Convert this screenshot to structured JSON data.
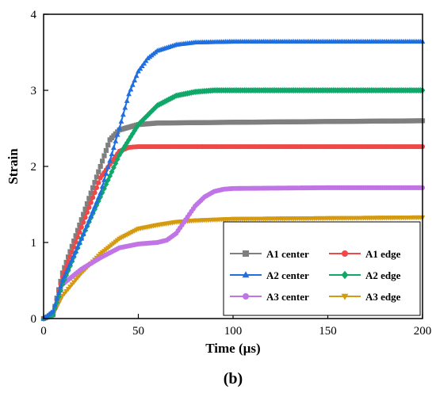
{
  "caption": "(b)",
  "chart_data": {
    "type": "line",
    "xlabel": "Time (µs)",
    "ylabel": "Strain",
    "xlim": [
      0,
      200
    ],
    "ylim": [
      0,
      4
    ],
    "xticks": [
      0,
      50,
      100,
      150,
      200
    ],
    "xtick_labels": [
      "0",
      "50",
      "100",
      "150",
      "200"
    ],
    "yticks": [
      0,
      1,
      2,
      3,
      4
    ],
    "ytick_labels": [
      "0",
      "1",
      "2",
      "3",
      "4"
    ],
    "grid": false,
    "legend_position": "bottom-right",
    "series": [
      {
        "name": "A1 center",
        "color": "#7f7f7f",
        "marker": "square",
        "x": [
          0,
          5,
          10,
          20,
          30,
          35,
          40,
          50,
          60,
          100,
          150,
          200
        ],
        "y": [
          0,
          0.05,
          0.6,
          1.3,
          2.0,
          2.35,
          2.48,
          2.55,
          2.57,
          2.58,
          2.59,
          2.6
        ]
      },
      {
        "name": "A1 edge",
        "color": "#f04848",
        "marker": "circle",
        "x": [
          0,
          5,
          10,
          20,
          30,
          40,
          45,
          50,
          100,
          150,
          200
        ],
        "y": [
          0,
          0.05,
          0.55,
          1.2,
          1.85,
          2.2,
          2.25,
          2.26,
          2.26,
          2.26,
          2.26
        ]
      },
      {
        "name": "A2 center",
        "color": "#1f6fe0",
        "marker": "triangle-up",
        "x": [
          0,
          5,
          10,
          20,
          30,
          40,
          45,
          50,
          55,
          60,
          70,
          80,
          100,
          150,
          200
        ],
        "y": [
          0,
          0.1,
          0.5,
          1.05,
          1.65,
          2.5,
          2.95,
          3.25,
          3.42,
          3.52,
          3.6,
          3.63,
          3.64,
          3.64,
          3.64
        ]
      },
      {
        "name": "A2 edge",
        "color": "#0fa868",
        "marker": "diamond",
        "x": [
          0,
          5,
          10,
          20,
          30,
          40,
          50,
          60,
          70,
          80,
          90,
          100,
          150,
          200
        ],
        "y": [
          0,
          0.05,
          0.45,
          1.05,
          1.6,
          2.15,
          2.55,
          2.8,
          2.93,
          2.98,
          3.0,
          3.0,
          3.0,
          3.0
        ]
      },
      {
        "name": "A3 center",
        "color": "#c074e6",
        "marker": "circle",
        "x": [
          0,
          5,
          10,
          20,
          30,
          40,
          50,
          60,
          65,
          70,
          75,
          80,
          85,
          90,
          95,
          100,
          150,
          200
        ],
        "y": [
          0,
          0.05,
          0.45,
          0.65,
          0.8,
          0.93,
          0.98,
          1.0,
          1.03,
          1.12,
          1.3,
          1.48,
          1.6,
          1.67,
          1.7,
          1.71,
          1.72,
          1.72
        ]
      },
      {
        "name": "A3 edge",
        "color": "#d49a10",
        "marker": "triangle-down",
        "x": [
          0,
          5,
          10,
          20,
          30,
          40,
          50,
          60,
          70,
          80,
          100,
          150,
          200
        ],
        "y": [
          0,
          0.05,
          0.3,
          0.6,
          0.85,
          1.05,
          1.18,
          1.23,
          1.27,
          1.29,
          1.31,
          1.32,
          1.33
        ]
      }
    ]
  }
}
